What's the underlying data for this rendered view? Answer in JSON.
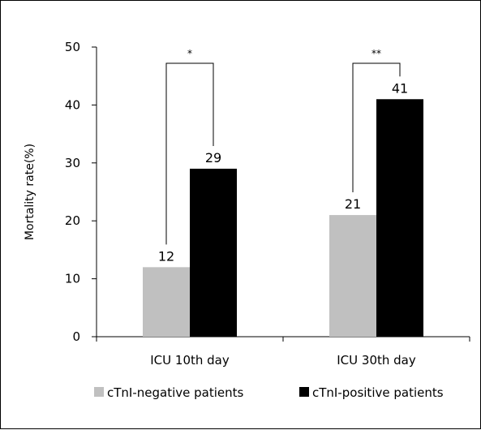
{
  "chart_data": {
    "type": "bar",
    "title": "",
    "xlabel": "",
    "ylabel": "Mortality rate(%)",
    "ylim": [
      0,
      50
    ],
    "yticks": [
      0,
      10,
      20,
      30,
      40,
      50
    ],
    "categories": [
      "ICU 10th day",
      "ICU 30th day"
    ],
    "series": [
      {
        "name": "cTnI-negative patients",
        "color": "#c0c0c0",
        "values": [
          12,
          21
        ]
      },
      {
        "name": "cTnI-positive patients",
        "color": "#000000",
        "values": [
          29,
          41
        ]
      }
    ],
    "data_labels": [
      [
        "12",
        "29"
      ],
      [
        "21",
        "41"
      ]
    ],
    "significance": [
      "*",
      "**"
    ],
    "legend": {
      "position": "bottom",
      "items": [
        "cTnI-negative patients",
        "cTnI-positive patients"
      ]
    },
    "grid": false
  }
}
